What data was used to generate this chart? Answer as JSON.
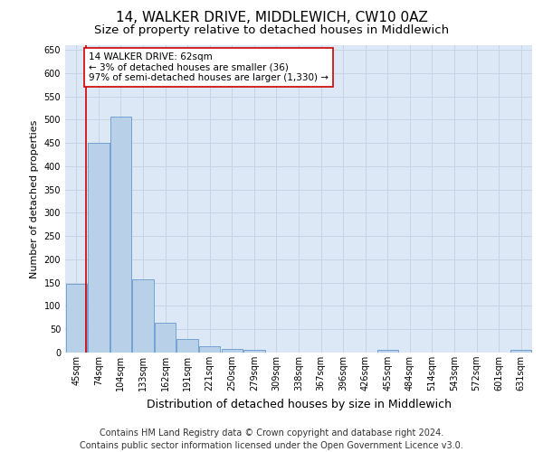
{
  "title": "14, WALKER DRIVE, MIDDLEWICH, CW10 0AZ",
  "subtitle": "Size of property relative to detached houses in Middlewich",
  "xlabel": "Distribution of detached houses by size in Middlewich",
  "ylabel": "Number of detached properties",
  "categories": [
    "45sqm",
    "74sqm",
    "104sqm",
    "133sqm",
    "162sqm",
    "191sqm",
    "221sqm",
    "250sqm",
    "279sqm",
    "309sqm",
    "338sqm",
    "367sqm",
    "396sqm",
    "426sqm",
    "455sqm",
    "484sqm",
    "514sqm",
    "543sqm",
    "572sqm",
    "601sqm",
    "631sqm"
  ],
  "values": [
    147,
    450,
    507,
    158,
    65,
    30,
    13,
    8,
    5,
    0,
    0,
    0,
    0,
    0,
    5,
    0,
    0,
    0,
    0,
    0,
    5
  ],
  "bar_color": "#b8d0e8",
  "bar_edge_color": "#6699cc",
  "annotation_box_text": "14 WALKER DRIVE: 62sqm\n← 3% of detached houses are smaller (36)\n97% of semi-detached houses are larger (1,330) →",
  "annotation_box_color": "#cc0000",
  "annotation_box_fill": "#ffffff",
  "vline_color": "#cc0000",
  "vline_x": 0.42,
  "ylim": [
    0,
    660
  ],
  "yticks": [
    0,
    50,
    100,
    150,
    200,
    250,
    300,
    350,
    400,
    450,
    500,
    550,
    600,
    650
  ],
  "grid_color": "#c8d4e4",
  "bg_color": "#dce8f5",
  "footer": "Contains HM Land Registry data © Crown copyright and database right 2024.\nContains public sector information licensed under the Open Government Licence v3.0.",
  "title_fontsize": 11,
  "subtitle_fontsize": 9.5,
  "ylabel_fontsize": 8,
  "xlabel_fontsize": 9,
  "footer_fontsize": 7,
  "annotation_fontsize": 7.5,
  "tick_fontsize": 7
}
